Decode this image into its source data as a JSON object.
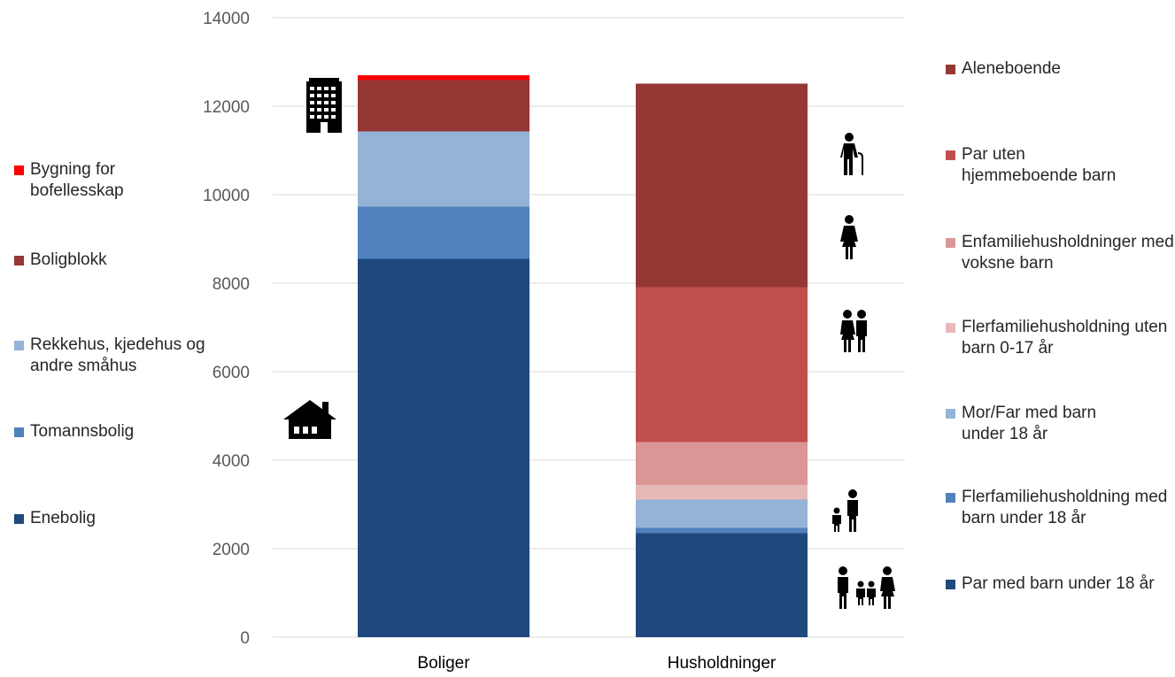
{
  "chart_data": {
    "type": "bar",
    "stacked": true,
    "categories": [
      "Boliger",
      "Husholdninger"
    ],
    "ylim": [
      0,
      14000
    ],
    "yticks": [
      0,
      2000,
      4000,
      6000,
      8000,
      10000,
      12000,
      14000
    ],
    "grid": true,
    "series": [
      {
        "name": "Enebolig",
        "category": "Boliger",
        "value": 8550,
        "color": "#1F497D"
      },
      {
        "name": "Tomannsbolig",
        "category": "Boliger",
        "value": 1180,
        "color": "#4F81BD"
      },
      {
        "name": "Rekkehus, kjedehus og andre småhus",
        "category": "Boliger",
        "value": 1700,
        "color": "#95B3D7"
      },
      {
        "name": "Boligblokk",
        "category": "Boliger",
        "value": 1160,
        "color": "#953735"
      },
      {
        "name": "Bygning for bofellesskap",
        "category": "Boliger",
        "value": 110,
        "color": "#FF0000"
      },
      {
        "name": "Par med barn under 18 år",
        "category": "Husholdninger",
        "value": 2350,
        "color": "#1F497D"
      },
      {
        "name": "Flerfamiliehusholdning med barn under 18 år",
        "category": "Husholdninger",
        "value": 120,
        "color": "#4F81BD"
      },
      {
        "name": "Mor/Far med barn under 18 år",
        "category": "Husholdninger",
        "value": 640,
        "color": "#95B3D7"
      },
      {
        "name": "Flerfamiliehusholdning uten barn 0-17 år",
        "category": "Husholdninger",
        "value": 330,
        "color": "#E6B9B8"
      },
      {
        "name": "Enfamiliehusholdninger med voksne barn",
        "category": "Husholdninger",
        "value": 970,
        "color": "#D99694"
      },
      {
        "name": "Par uten hjemmeboende barn",
        "category": "Husholdninger",
        "value": 3500,
        "color": "#C0504D"
      },
      {
        "name": "Aleneboende",
        "category": "Husholdninger",
        "value": 4600,
        "color": "#953735"
      }
    ],
    "legend_left": [
      {
        "label": "Bygning for bofellesskap",
        "color": "#FF0000"
      },
      {
        "label": "Boligblokk",
        "color": "#953735"
      },
      {
        "label": "Rekkehus, kjedehus og andre småhus",
        "color": "#95B3D7"
      },
      {
        "label": "Tomannsbolig",
        "color": "#4F81BD"
      },
      {
        "label": "Enebolig",
        "color": "#1F497D"
      }
    ],
    "legend_right": [
      {
        "label": "Aleneboende",
        "color": "#953735"
      },
      {
        "label": "Par uten hjemmeboende barn",
        "color": "#C0504D"
      },
      {
        "label": "Enfamiliehusholdninger med voksne barn",
        "color": "#D99694"
      },
      {
        "label": "Flerfamiliehusholdning uten barn 0-17 år",
        "color": "#E6B9B8"
      },
      {
        "label": "Mor/Far med barn under 18 år",
        "color": "#95B3D7"
      },
      {
        "label": "Flerfamiliehusholdning med barn under 18 år",
        "color": "#4F81BD"
      },
      {
        "label": "Par med barn under 18 år",
        "color": "#1F497D"
      }
    ],
    "icons": [
      "apartment-building-icon",
      "house-icon",
      "elderly-person-icon",
      "woman-icon",
      "couple-icon",
      "parent-child-icon",
      "family-icon"
    ]
  }
}
